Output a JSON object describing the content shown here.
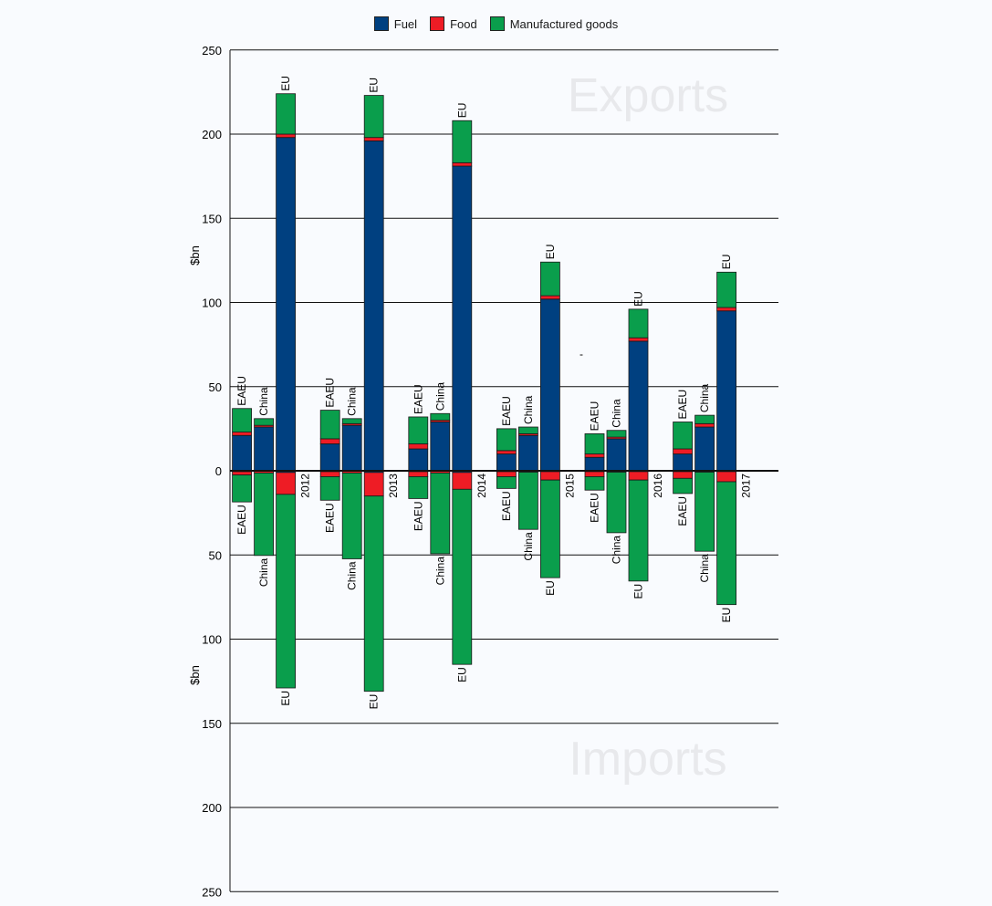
{
  "chart_data": {
    "type": "bar",
    "stacked": true,
    "diverging": true,
    "ylabel_top": "$bn",
    "ylabel_bottom": "$bn",
    "export_region_label": "Exports",
    "import_region_label": "Imports",
    "ylim_exports": [
      0,
      250
    ],
    "ylim_imports": [
      0,
      250
    ],
    "yticks": [
      0,
      50,
      100,
      150,
      200,
      250
    ],
    "grid": true,
    "legend_position": "top-center",
    "legend": [
      {
        "name": "Fuel",
        "color": "#004080"
      },
      {
        "name": "Food",
        "color": "#ee1c25"
      },
      {
        "name": "Manufactured goods",
        "color": "#0a9e4c"
      }
    ],
    "stray_mark": "-",
    "years": [
      {
        "year": "2012",
        "groups": [
          {
            "partner": "EAEU",
            "exports": {
              "fuel": 21,
              "food": 2,
              "manufactured": 14
            },
            "imports": {
              "fuel": 0.5,
              "food": 2,
              "manufactured": 16
            }
          },
          {
            "partner": "China",
            "exports": {
              "fuel": 26,
              "food": 1,
              "manufactured": 4
            },
            "imports": {
              "fuel": 0.3,
              "food": 1,
              "manufactured": 49
            }
          },
          {
            "partner": "EU",
            "exports": {
              "fuel": 198,
              "food": 2,
              "manufactured": 24
            },
            "imports": {
              "fuel": 1,
              "food": 13,
              "manufactured": 115
            }
          }
        ]
      },
      {
        "year": "2013",
        "groups": [
          {
            "partner": "EAEU",
            "exports": {
              "fuel": 16,
              "food": 3,
              "manufactured": 17
            },
            "imports": {
              "fuel": 0.5,
              "food": 3,
              "manufactured": 14
            }
          },
          {
            "partner": "China",
            "exports": {
              "fuel": 27,
              "food": 1,
              "manufactured": 3
            },
            "imports": {
              "fuel": 0.3,
              "food": 1,
              "manufactured": 51
            }
          },
          {
            "partner": "EU",
            "exports": {
              "fuel": 196,
              "food": 2,
              "manufactured": 25
            },
            "imports": {
              "fuel": 1,
              "food": 14,
              "manufactured": 116
            }
          }
        ]
      },
      {
        "year": "2014",
        "groups": [
          {
            "partner": "EAEU",
            "exports": {
              "fuel": 13,
              "food": 3,
              "manufactured": 16
            },
            "imports": {
              "fuel": 0.5,
              "food": 3,
              "manufactured": 13
            }
          },
          {
            "partner": "China",
            "exports": {
              "fuel": 29,
              "food": 1,
              "manufactured": 4
            },
            "imports": {
              "fuel": 0.3,
              "food": 1,
              "manufactured": 48
            }
          },
          {
            "partner": "EU",
            "exports": {
              "fuel": 181,
              "food": 2,
              "manufactured": 25
            },
            "imports": {
              "fuel": 1,
              "food": 10,
              "manufactured": 104
            }
          }
        ]
      },
      {
        "year": "2015",
        "groups": [
          {
            "partner": "EAEU",
            "exports": {
              "fuel": 10,
              "food": 2,
              "manufactured": 13
            },
            "imports": {
              "fuel": 0.5,
              "food": 3,
              "manufactured": 7
            }
          },
          {
            "partner": "China",
            "exports": {
              "fuel": 21,
              "food": 1,
              "manufactured": 4
            },
            "imports": {
              "fuel": 0.3,
              "food": 0.5,
              "manufactured": 34
            }
          },
          {
            "partner": "EU",
            "exports": {
              "fuel": 102,
              "food": 2,
              "manufactured": 20
            },
            "imports": {
              "fuel": 0.5,
              "food": 5,
              "manufactured": 58
            }
          }
        ]
      },
      {
        "year": "2016",
        "groups": [
          {
            "partner": "EAEU",
            "exports": {
              "fuel": 8,
              "food": 2,
              "manufactured": 12
            },
            "imports": {
              "fuel": 0.5,
              "food": 3,
              "manufactured": 8
            }
          },
          {
            "partner": "China",
            "exports": {
              "fuel": 19,
              "food": 1,
              "manufactured": 4
            },
            "imports": {
              "fuel": 0.3,
              "food": 0.5,
              "manufactured": 36
            }
          },
          {
            "partner": "EU",
            "exports": {
              "fuel": 77,
              "food": 2,
              "manufactured": 17
            },
            "imports": {
              "fuel": 0.5,
              "food": 5,
              "manufactured": 60
            }
          }
        ]
      },
      {
        "year": "2017",
        "groups": [
          {
            "partner": "EAEU",
            "exports": {
              "fuel": 10,
              "food": 3,
              "manufactured": 16
            },
            "imports": {
              "fuel": 0.5,
              "food": 4,
              "manufactured": 9
            }
          },
          {
            "partner": "China",
            "exports": {
              "fuel": 26,
              "food": 2,
              "manufactured": 5
            },
            "imports": {
              "fuel": 0.3,
              "food": 0.5,
              "manufactured": 47
            }
          },
          {
            "partner": "EU",
            "exports": {
              "fuel": 95,
              "food": 2,
              "manufactured": 21
            },
            "imports": {
              "fuel": 0.5,
              "food": 6,
              "manufactured": 73
            }
          }
        ]
      }
    ]
  }
}
